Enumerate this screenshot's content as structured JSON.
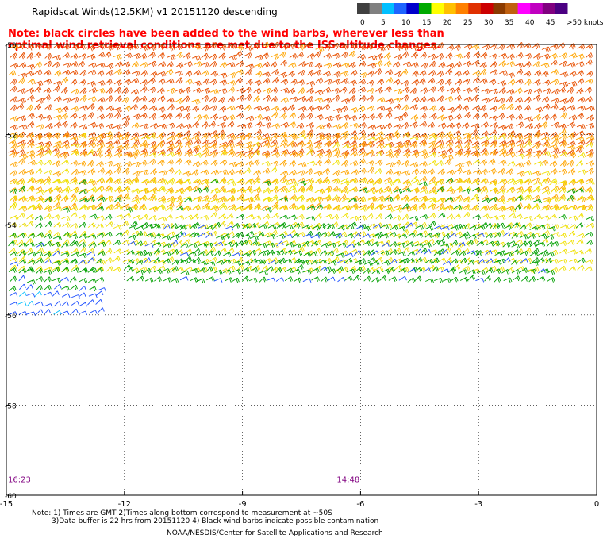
{
  "title": "Rapidscat Winds(12.5KM) v1 20151120 descending",
  "note": "Note: black circles have been added to the wind barbs, wherever less than optimal wind retrieval conditions are met due to the ISS altitude changes.",
  "legend": {
    "labels": [
      "0",
      "5",
      "10",
      "15",
      "20",
      "25",
      "30",
      "35",
      "40",
      "45",
      ">50 knots"
    ],
    "colors": [
      "#404040",
      "#808080",
      "#00bfff",
      "#1e64ff",
      "#0000cc",
      "#00aa00",
      "#ffff00",
      "#ffc000",
      "#ff8000",
      "#e03000",
      "#cc0000",
      "#8b3a00",
      "#c06010",
      "#ff00ff",
      "#c000c0",
      "#800080",
      "#4b0082"
    ]
  },
  "footer": {
    "line1": "Note: 1) Times are GMT 2)Times along bottom correspond to measurement at ~50S",
    "line2": "3)Data buffer is 22 hrs from 20151120 4) Black wind barbs indicate possible contamination",
    "line3": "NOAA/NESDIS/Center for Satellite Applications and Research"
  },
  "chart_data": {
    "type": "scatter",
    "title": "Rapidscat Winds(12.5KM) v1 20151120 descending",
    "xlim": [
      -15,
      0
    ],
    "ylim": [
      -60,
      -50
    ],
    "x_ticks": [
      -15,
      -12,
      -9,
      -6,
      -3,
      0
    ],
    "x_tick_labels": [
      "-15",
      "-12",
      "-9",
      "-6",
      "-3",
      "0"
    ],
    "y_ticks": [
      -50,
      -52,
      -54,
      -56,
      -58,
      -60
    ],
    "y_tick_labels": [
      "-50",
      "-52",
      "-54",
      "-56",
      "-58",
      "-60"
    ],
    "grid": "dotted",
    "time_labels": [
      {
        "text": "16:23",
        "lon": -15,
        "lat": -59.6
      },
      {
        "text": "14:48",
        "lon": -6,
        "lat": -59.6
      }
    ],
    "regions": [
      {
        "name": "orange-red band",
        "lon": [
          -15,
          0
        ],
        "lat": [
          -50,
          -52.5
        ],
        "speed_knots": 32
      },
      {
        "name": "orange band",
        "lon": [
          -15,
          0
        ],
        "lat": [
          -52,
          -53.8
        ],
        "speed_knots": 27
      },
      {
        "name": "yellow band",
        "lon": [
          -15,
          0
        ],
        "lat": [
          -53,
          -55.2
        ],
        "speed_knots": 22
      },
      {
        "name": "green band",
        "lon": [
          -12,
          -1
        ],
        "lat": [
          -54,
          -55.4
        ],
        "speed_knots": 17
      },
      {
        "name": "west green band",
        "lon": [
          -15,
          -12.4
        ],
        "lat": [
          -54.2,
          -55.5
        ],
        "speed_knots": 17
      },
      {
        "name": "west blue band",
        "lon": [
          -15,
          -12.4
        ],
        "lat": [
          -55.5,
          -56
        ],
        "speed_knots": 12
      }
    ]
  }
}
